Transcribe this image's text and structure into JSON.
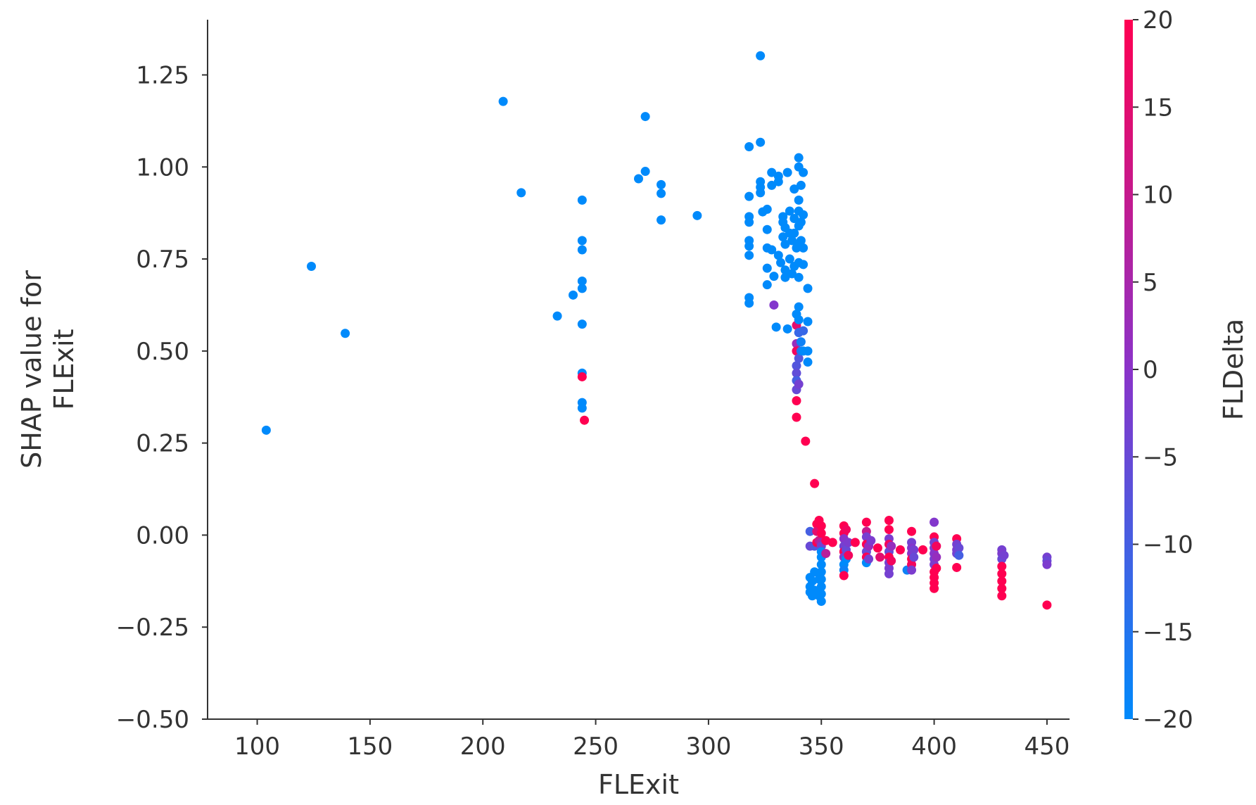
{
  "chart_data": {
    "type": "scatter",
    "title": "",
    "xlabel": "FLExit",
    "ylabel": [
      "SHAP value for",
      "FLExit"
    ],
    "colorbar_label": "FLDelta",
    "xlim": [
      78,
      460
    ],
    "ylim": [
      -0.5,
      1.4
    ],
    "xticks": [
      100,
      150,
      200,
      250,
      300,
      350,
      400,
      450
    ],
    "xtick_labels": [
      "100",
      "150",
      "200",
      "250",
      "300",
      "350",
      "400",
      "450"
    ],
    "yticks": [
      -0.5,
      -0.25,
      0.0,
      0.25,
      0.5,
      0.75,
      1.0,
      1.25
    ],
    "ytick_labels": [
      "−0.50",
      "−0.25",
      "0.00",
      "0.25",
      "0.50",
      "0.75",
      "1.00",
      "1.25"
    ],
    "color_range": [
      -20,
      20
    ],
    "colorbar_ticks": [
      20,
      15,
      10,
      5,
      0,
      -5,
      -10,
      -15,
      -20
    ],
    "colorbar_tick_labels": [
      "20",
      "15",
      "10",
      "5",
      "0",
      "−5",
      "−10",
      "−15",
      "−20"
    ],
    "colormap": [
      "#008afb",
      "#ff0051"
    ],
    "grid": false,
    "points": [
      {
        "x": 104,
        "y": 0.285,
        "c": -20
      },
      {
        "x": 124,
        "y": 0.73,
        "c": -20
      },
      {
        "x": 139,
        "y": 0.548,
        "c": -20
      },
      {
        "x": 209,
        "y": 1.178,
        "c": -20
      },
      {
        "x": 217,
        "y": 0.93,
        "c": -20
      },
      {
        "x": 233,
        "y": 0.595,
        "c": -20
      },
      {
        "x": 240,
        "y": 0.652,
        "c": -20
      },
      {
        "x": 244,
        "y": 0.91,
        "c": -20
      },
      {
        "x": 244,
        "y": 0.8,
        "c": -20
      },
      {
        "x": 244,
        "y": 0.775,
        "c": -20
      },
      {
        "x": 244,
        "y": 0.69,
        "c": -20
      },
      {
        "x": 244,
        "y": 0.67,
        "c": -20
      },
      {
        "x": 244,
        "y": 0.573,
        "c": -20
      },
      {
        "x": 244,
        "y": 0.44,
        "c": -20
      },
      {
        "x": 244,
        "y": 0.43,
        "c": 20
      },
      {
        "x": 244,
        "y": 0.36,
        "c": -20
      },
      {
        "x": 244,
        "y": 0.345,
        "c": -20
      },
      {
        "x": 245,
        "y": 0.312,
        "c": 20
      },
      {
        "x": 269,
        "y": 0.968,
        "c": -20
      },
      {
        "x": 272,
        "y": 0.988,
        "c": -20
      },
      {
        "x": 272,
        "y": 1.137,
        "c": -20
      },
      {
        "x": 279,
        "y": 0.952,
        "c": -20
      },
      {
        "x": 279,
        "y": 0.928,
        "c": -20
      },
      {
        "x": 279,
        "y": 0.856,
        "c": -20
      },
      {
        "x": 295,
        "y": 0.868,
        "c": -20
      },
      {
        "x": 318,
        "y": 1.055,
        "c": -20
      },
      {
        "x": 318,
        "y": 0.92,
        "c": -20
      },
      {
        "x": 318,
        "y": 0.865,
        "c": -20
      },
      {
        "x": 318,
        "y": 0.85,
        "c": -20
      },
      {
        "x": 318,
        "y": 0.8,
        "c": -20
      },
      {
        "x": 318,
        "y": 0.785,
        "c": -20
      },
      {
        "x": 318,
        "y": 0.76,
        "c": -20
      },
      {
        "x": 318,
        "y": 0.645,
        "c": -20
      },
      {
        "x": 318,
        "y": 0.63,
        "c": -20
      },
      {
        "x": 323,
        "y": 1.302,
        "c": -20
      },
      {
        "x": 323,
        "y": 1.067,
        "c": -20
      },
      {
        "x": 323,
        "y": 0.96,
        "c": -20
      },
      {
        "x": 323,
        "y": 0.945,
        "c": -20
      },
      {
        "x": 323,
        "y": 0.93,
        "c": -20
      },
      {
        "x": 324,
        "y": 0.878,
        "c": -20
      },
      {
        "x": 326,
        "y": 0.885,
        "c": -20
      },
      {
        "x": 326,
        "y": 0.83,
        "c": -20
      },
      {
        "x": 326,
        "y": 0.78,
        "c": -20
      },
      {
        "x": 326,
        "y": 0.725,
        "c": -20
      },
      {
        "x": 326,
        "y": 0.68,
        "c": -20
      },
      {
        "x": 328,
        "y": 0.985,
        "c": -20
      },
      {
        "x": 328,
        "y": 0.95,
        "c": -20
      },
      {
        "x": 328,
        "y": 0.775,
        "c": -20
      },
      {
        "x": 329,
        "y": 0.703,
        "c": -20
      },
      {
        "x": 329,
        "y": 0.625,
        "c": -1
      },
      {
        "x": 330,
        "y": 0.565,
        "c": -20
      },
      {
        "x": 331,
        "y": 0.975,
        "c": -20
      },
      {
        "x": 331,
        "y": 0.96,
        "c": -20
      },
      {
        "x": 331,
        "y": 0.76,
        "c": -20
      },
      {
        "x": 332,
        "y": 0.74,
        "c": -20
      },
      {
        "x": 333,
        "y": 0.865,
        "c": -20
      },
      {
        "x": 333,
        "y": 0.85,
        "c": -20
      },
      {
        "x": 333,
        "y": 0.81,
        "c": -20
      },
      {
        "x": 334,
        "y": 0.835,
        "c": -20
      },
      {
        "x": 334,
        "y": 0.79,
        "c": -20
      },
      {
        "x": 334,
        "y": 0.72,
        "c": -20
      },
      {
        "x": 334,
        "y": 0.7,
        "c": -20
      },
      {
        "x": 335,
        "y": 0.985,
        "c": -20
      },
      {
        "x": 335,
        "y": 0.56,
        "c": -20
      },
      {
        "x": 336,
        "y": 0.88,
        "c": -20
      },
      {
        "x": 336,
        "y": 0.82,
        "c": -20
      },
      {
        "x": 336,
        "y": 0.75,
        "c": -20
      },
      {
        "x": 337,
        "y": 0.8,
        "c": -20
      },
      {
        "x": 337,
        "y": 0.71,
        "c": -20
      },
      {
        "x": 338,
        "y": 0.94,
        "c": -20
      },
      {
        "x": 338,
        "y": 0.86,
        "c": -20
      },
      {
        "x": 338,
        "y": 0.82,
        "c": -20
      },
      {
        "x": 338,
        "y": 0.73,
        "c": -20
      },
      {
        "x": 339,
        "y": 0.78,
        "c": -20
      },
      {
        "x": 339,
        "y": 0.6,
        "c": -20
      },
      {
        "x": 339,
        "y": 0.57,
        "c": 15
      },
      {
        "x": 339,
        "y": 0.52,
        "c": 2
      },
      {
        "x": 339,
        "y": 0.5,
        "c": 18
      },
      {
        "x": 339,
        "y": 0.46,
        "c": -8
      },
      {
        "x": 339,
        "y": 0.44,
        "c": -6
      },
      {
        "x": 339,
        "y": 0.42,
        "c": -10
      },
      {
        "x": 339,
        "y": 0.395,
        "c": -5
      },
      {
        "x": 339,
        "y": 0.365,
        "c": 20
      },
      {
        "x": 339,
        "y": 0.32,
        "c": 20
      },
      {
        "x": 340,
        "y": 1.025,
        "c": -20
      },
      {
        "x": 340,
        "y": 1.0,
        "c": -20
      },
      {
        "x": 340,
        "y": 0.91,
        "c": -20
      },
      {
        "x": 340,
        "y": 0.88,
        "c": -20
      },
      {
        "x": 340,
        "y": 0.84,
        "c": -20
      },
      {
        "x": 340,
        "y": 0.79,
        "c": -20
      },
      {
        "x": 340,
        "y": 0.74,
        "c": -20
      },
      {
        "x": 340,
        "y": 0.7,
        "c": -20
      },
      {
        "x": 340,
        "y": 0.62,
        "c": -20
      },
      {
        "x": 340,
        "y": 0.585,
        "c": -20
      },
      {
        "x": 340,
        "y": 0.55,
        "c": -12
      },
      {
        "x": 340,
        "y": 0.48,
        "c": -8
      },
      {
        "x": 340,
        "y": 0.41,
        "c": -3
      },
      {
        "x": 341,
        "y": 0.95,
        "c": -20
      },
      {
        "x": 341,
        "y": 0.85,
        "c": -20
      },
      {
        "x": 341,
        "y": 0.8,
        "c": -20
      },
      {
        "x": 341,
        "y": 0.525,
        "c": -18
      },
      {
        "x": 341,
        "y": 0.5,
        "c": -15
      },
      {
        "x": 342,
        "y": 0.985,
        "c": -20
      },
      {
        "x": 342,
        "y": 0.87,
        "c": -20
      },
      {
        "x": 342,
        "y": 0.78,
        "c": -20
      },
      {
        "x": 342,
        "y": 0.735,
        "c": -20
      },
      {
        "x": 342,
        "y": 0.555,
        "c": -12
      },
      {
        "x": 342,
        "y": 0.5,
        "c": -20
      },
      {
        "x": 343,
        "y": 0.255,
        "c": 20
      },
      {
        "x": 344,
        "y": 0.67,
        "c": -20
      },
      {
        "x": 344,
        "y": 0.58,
        "c": -20
      },
      {
        "x": 344,
        "y": 0.5,
        "c": -20
      },
      {
        "x": 344,
        "y": 0.47,
        "c": -20
      },
      {
        "x": 347,
        "y": 0.14,
        "c": 20
      },
      {
        "x": 345,
        "y": 0.01,
        "c": -10
      },
      {
        "x": 345,
        "y": -0.03,
        "c": -5
      },
      {
        "x": 345,
        "y": -0.115,
        "c": -20
      },
      {
        "x": 345,
        "y": -0.14,
        "c": -20
      },
      {
        "x": 345,
        "y": -0.155,
        "c": -20
      },
      {
        "x": 346,
        "y": -0.125,
        "c": -20
      },
      {
        "x": 346,
        "y": -0.165,
        "c": -20
      },
      {
        "x": 347,
        "y": -0.03,
        "c": -8
      },
      {
        "x": 347,
        "y": -0.1,
        "c": -20
      },
      {
        "x": 347,
        "y": -0.15,
        "c": -20
      },
      {
        "x": 348,
        "y": 0.03,
        "c": 20
      },
      {
        "x": 348,
        "y": 0.01,
        "c": 15
      },
      {
        "x": 348,
        "y": -0.02,
        "c": 20
      },
      {
        "x": 349,
        "y": 0.04,
        "c": 20
      },
      {
        "x": 349,
        "y": -0.015,
        "c": 10
      },
      {
        "x": 349,
        "y": -0.12,
        "c": -20
      },
      {
        "x": 349,
        "y": -0.165,
        "c": -20
      },
      {
        "x": 350,
        "y": 0.025,
        "c": 20
      },
      {
        "x": 350,
        "y": 0.005,
        "c": 20
      },
      {
        "x": 350,
        "y": -0.02,
        "c": 5
      },
      {
        "x": 350,
        "y": -0.03,
        "c": -3
      },
      {
        "x": 350,
        "y": -0.045,
        "c": -20
      },
      {
        "x": 350,
        "y": -0.06,
        "c": -20
      },
      {
        "x": 350,
        "y": -0.08,
        "c": -20
      },
      {
        "x": 350,
        "y": -0.1,
        "c": -20
      },
      {
        "x": 350,
        "y": -0.12,
        "c": -20
      },
      {
        "x": 350,
        "y": -0.14,
        "c": -20
      },
      {
        "x": 350,
        "y": -0.16,
        "c": -20
      },
      {
        "x": 350,
        "y": -0.18,
        "c": -20
      },
      {
        "x": 352,
        "y": -0.015,
        "c": 20
      },
      {
        "x": 352,
        "y": -0.05,
        "c": 8
      },
      {
        "x": 355,
        "y": -0.02,
        "c": 20
      },
      {
        "x": 360,
        "y": 0.025,
        "c": 20
      },
      {
        "x": 360,
        "y": 0.005,
        "c": 20
      },
      {
        "x": 360,
        "y": -0.01,
        "c": 0
      },
      {
        "x": 360,
        "y": -0.03,
        "c": -3
      },
      {
        "x": 360,
        "y": -0.045,
        "c": 20
      },
      {
        "x": 360,
        "y": -0.06,
        "c": -2
      },
      {
        "x": 360,
        "y": -0.08,
        "c": -20
      },
      {
        "x": 360,
        "y": -0.095,
        "c": -18
      },
      {
        "x": 360,
        "y": -0.11,
        "c": 20
      },
      {
        "x": 361,
        "y": 0.015,
        "c": 18
      },
      {
        "x": 361,
        "y": -0.04,
        "c": -5
      },
      {
        "x": 361,
        "y": -0.065,
        "c": -20
      },
      {
        "x": 362,
        "y": -0.02,
        "c": -2
      },
      {
        "x": 362,
        "y": -0.055,
        "c": 18
      },
      {
        "x": 365,
        "y": -0.02,
        "c": 20
      },
      {
        "x": 370,
        "y": 0.035,
        "c": 20
      },
      {
        "x": 370,
        "y": 0.01,
        "c": 10
      },
      {
        "x": 370,
        "y": -0.005,
        "c": -3
      },
      {
        "x": 370,
        "y": -0.025,
        "c": 20
      },
      {
        "x": 370,
        "y": -0.045,
        "c": -5
      },
      {
        "x": 370,
        "y": -0.06,
        "c": 20
      },
      {
        "x": 370,
        "y": -0.075,
        "c": -20
      },
      {
        "x": 371,
        "y": -0.03,
        "c": 2
      },
      {
        "x": 371,
        "y": -0.065,
        "c": -3
      },
      {
        "x": 372,
        "y": -0.015,
        "c": -2
      },
      {
        "x": 375,
        "y": -0.035,
        "c": 20
      },
      {
        "x": 376,
        "y": -0.06,
        "c": 15
      },
      {
        "x": 380,
        "y": 0.04,
        "c": 20
      },
      {
        "x": 380,
        "y": 0.015,
        "c": 20
      },
      {
        "x": 380,
        "y": -0.01,
        "c": -2
      },
      {
        "x": 380,
        "y": -0.025,
        "c": 18
      },
      {
        "x": 380,
        "y": -0.045,
        "c": -5
      },
      {
        "x": 380,
        "y": -0.06,
        "c": 20
      },
      {
        "x": 380,
        "y": -0.075,
        "c": -3
      },
      {
        "x": 380,
        "y": -0.09,
        "c": -2
      },
      {
        "x": 380,
        "y": -0.105,
        "c": -3
      },
      {
        "x": 381,
        "y": -0.03,
        "c": 2
      },
      {
        "x": 381,
        "y": -0.07,
        "c": 18
      },
      {
        "x": 385,
        "y": -0.04,
        "c": 20
      },
      {
        "x": 388,
        "y": -0.095,
        "c": -18
      },
      {
        "x": 390,
        "y": 0.01,
        "c": 20
      },
      {
        "x": 390,
        "y": -0.02,
        "c": -3
      },
      {
        "x": 390,
        "y": -0.035,
        "c": -1
      },
      {
        "x": 390,
        "y": -0.05,
        "c": 0
      },
      {
        "x": 390,
        "y": -0.065,
        "c": 20
      },
      {
        "x": 390,
        "y": -0.08,
        "c": 18
      },
      {
        "x": 390,
        "y": -0.095,
        "c": -2
      },
      {
        "x": 391,
        "y": -0.04,
        "c": -3
      },
      {
        "x": 391,
        "y": -0.06,
        "c": -5
      },
      {
        "x": 395,
        "y": -0.04,
        "c": 20
      },
      {
        "x": 400,
        "y": 0.035,
        "c": -1
      },
      {
        "x": 400,
        "y": -0.005,
        "c": 20
      },
      {
        "x": 400,
        "y": -0.02,
        "c": -3
      },
      {
        "x": 400,
        "y": -0.035,
        "c": -2
      },
      {
        "x": 400,
        "y": -0.05,
        "c": 0
      },
      {
        "x": 400,
        "y": -0.065,
        "c": -3
      },
      {
        "x": 400,
        "y": -0.08,
        "c": -2
      },
      {
        "x": 400,
        "y": -0.1,
        "c": 20
      },
      {
        "x": 400,
        "y": -0.115,
        "c": 20
      },
      {
        "x": 400,
        "y": -0.13,
        "c": 20
      },
      {
        "x": 400,
        "y": -0.145,
        "c": 20
      },
      {
        "x": 401,
        "y": -0.03,
        "c": 18
      },
      {
        "x": 401,
        "y": -0.06,
        "c": 2
      },
      {
        "x": 401,
        "y": -0.09,
        "c": 20
      },
      {
        "x": 410,
        "y": -0.01,
        "c": 20
      },
      {
        "x": 410,
        "y": -0.025,
        "c": -3
      },
      {
        "x": 410,
        "y": -0.04,
        "c": -2
      },
      {
        "x": 410,
        "y": -0.05,
        "c": -3
      },
      {
        "x": 410,
        "y": -0.088,
        "c": 20
      },
      {
        "x": 411,
        "y": -0.035,
        "c": -5
      },
      {
        "x": 411,
        "y": -0.055,
        "c": -10
      },
      {
        "x": 430,
        "y": -0.04,
        "c": -3
      },
      {
        "x": 430,
        "y": -0.05,
        "c": -2
      },
      {
        "x": 430,
        "y": -0.065,
        "c": -5
      },
      {
        "x": 430,
        "y": -0.085,
        "c": 20
      },
      {
        "x": 430,
        "y": -0.105,
        "c": 20
      },
      {
        "x": 430,
        "y": -0.125,
        "c": 20
      },
      {
        "x": 430,
        "y": -0.145,
        "c": 20
      },
      {
        "x": 430,
        "y": -0.165,
        "c": 20
      },
      {
        "x": 431,
        "y": -0.055,
        "c": -3
      },
      {
        "x": 450,
        "y": -0.06,
        "c": -3
      },
      {
        "x": 450,
        "y": -0.07,
        "c": -5
      },
      {
        "x": 450,
        "y": -0.08,
        "c": -2
      },
      {
        "x": 450,
        "y": -0.19,
        "c": 20
      }
    ]
  }
}
